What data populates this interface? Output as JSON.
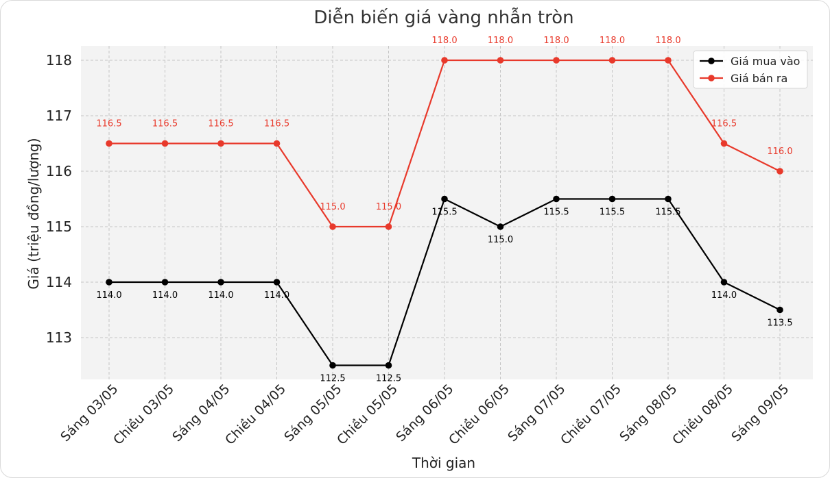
{
  "chart_data": {
    "type": "line",
    "title": "Diễn biến giá vàng nhẫn tròn",
    "xlabel": "Thời gian",
    "ylabel": "Giá (triệu đồng/lượng)",
    "categories": [
      "Sáng 03/05",
      "Chiều 03/05",
      "Sáng 04/05",
      "Chiều 04/05",
      "Sáng 05/05",
      "Chiều 05/05",
      "Sáng 06/05",
      "Chiều 06/05",
      "Sáng 07/05",
      "Chiều 07/05",
      "Sáng 08/05",
      "Chiều 08/05",
      "Sáng 09/05"
    ],
    "series": [
      {
        "name": "Giá mua vào",
        "color": "#000000",
        "values": [
          114.0,
          114.0,
          114.0,
          114.0,
          112.5,
          112.5,
          115.5,
          115.0,
          115.5,
          115.5,
          115.5,
          114.0,
          113.5
        ],
        "label_position": "below"
      },
      {
        "name": "Giá bán ra",
        "color": "#e8392b",
        "values": [
          116.5,
          116.5,
          116.5,
          116.5,
          115.0,
          115.0,
          118.0,
          118.0,
          118.0,
          118.0,
          118.0,
          116.5,
          116.0
        ],
        "label_position": "above"
      }
    ],
    "ylim": [
      112.25,
      118.25
    ],
    "yticks": [
      113,
      114,
      115,
      116,
      117,
      118
    ],
    "grid": true,
    "legend": "top-right"
  }
}
